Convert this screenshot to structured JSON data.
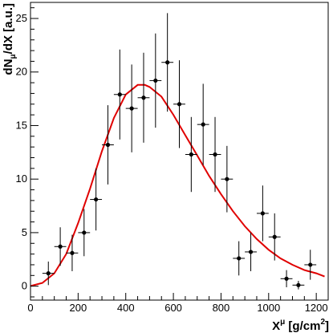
{
  "chart_data": {
    "type": "scatter",
    "title": "",
    "xlabel": {
      "main": "X",
      "sup": "μ",
      "unit": " [g/cm",
      "unit_sup": "2",
      "unit_end": "]"
    },
    "ylabel": {
      "main": "dN",
      "sub": "μ",
      "rest": "/dX [a.u.]"
    },
    "xlim": [
      0,
      1250
    ],
    "ylim": [
      -1.3,
      26.5
    ],
    "x_ticks": [
      0,
      200,
      400,
      600,
      800,
      1000,
      1200
    ],
    "y_ticks": [
      0,
      5,
      10,
      15,
      20,
      25
    ],
    "grid": false,
    "series": [
      {
        "type": "points",
        "x": [
          75,
          125,
          175,
          225,
          275,
          325,
          375,
          425,
          475,
          525,
          575,
          625,
          675,
          725,
          775,
          825,
          875,
          925,
          975,
          1025,
          1075,
          1125,
          1175
        ],
        "y": [
          1.2,
          3.7,
          3.1,
          5.0,
          8.1,
          13.2,
          17.9,
          16.6,
          17.6,
          19.2,
          20.9,
          17.0,
          12.3,
          15.1,
          12.3,
          10.0,
          2.6,
          3.2,
          6.8,
          4.6,
          0.7,
          0.1,
          2.0
        ],
        "y_err": [
          1.1,
          1.8,
          1.7,
          2.2,
          2.9,
          3.7,
          4.2,
          4.1,
          4.2,
          4.4,
          4.6,
          4.1,
          3.5,
          3.8,
          3.5,
          3.1,
          1.6,
          1.8,
          2.6,
          2.2,
          0.8,
          0.4,
          1.4
        ],
        "x_err": [
          25,
          25,
          25,
          25,
          25,
          25,
          25,
          25,
          25,
          25,
          25,
          25,
          25,
          25,
          25,
          25,
          25,
          25,
          25,
          25,
          25,
          25,
          25
        ],
        "color": "#000000"
      },
      {
        "type": "line",
        "x": [
          0,
          50,
          100,
          150,
          200,
          250,
          300,
          350,
          400,
          450,
          480,
          500,
          550,
          600,
          650,
          700,
          750,
          800,
          850,
          900,
          950,
          1000,
          1050,
          1100,
          1150,
          1200,
          1235
        ],
        "y": [
          0.02,
          0.3,
          1.2,
          3.0,
          5.9,
          9.1,
          12.6,
          15.7,
          17.9,
          18.8,
          18.8,
          18.6,
          17.7,
          16.0,
          14.1,
          12.2,
          10.3,
          8.6,
          7.0,
          5.6,
          4.4,
          3.4,
          2.6,
          2.0,
          1.5,
          1.2,
          0.9
        ],
        "color": "#e00000"
      }
    ]
  }
}
